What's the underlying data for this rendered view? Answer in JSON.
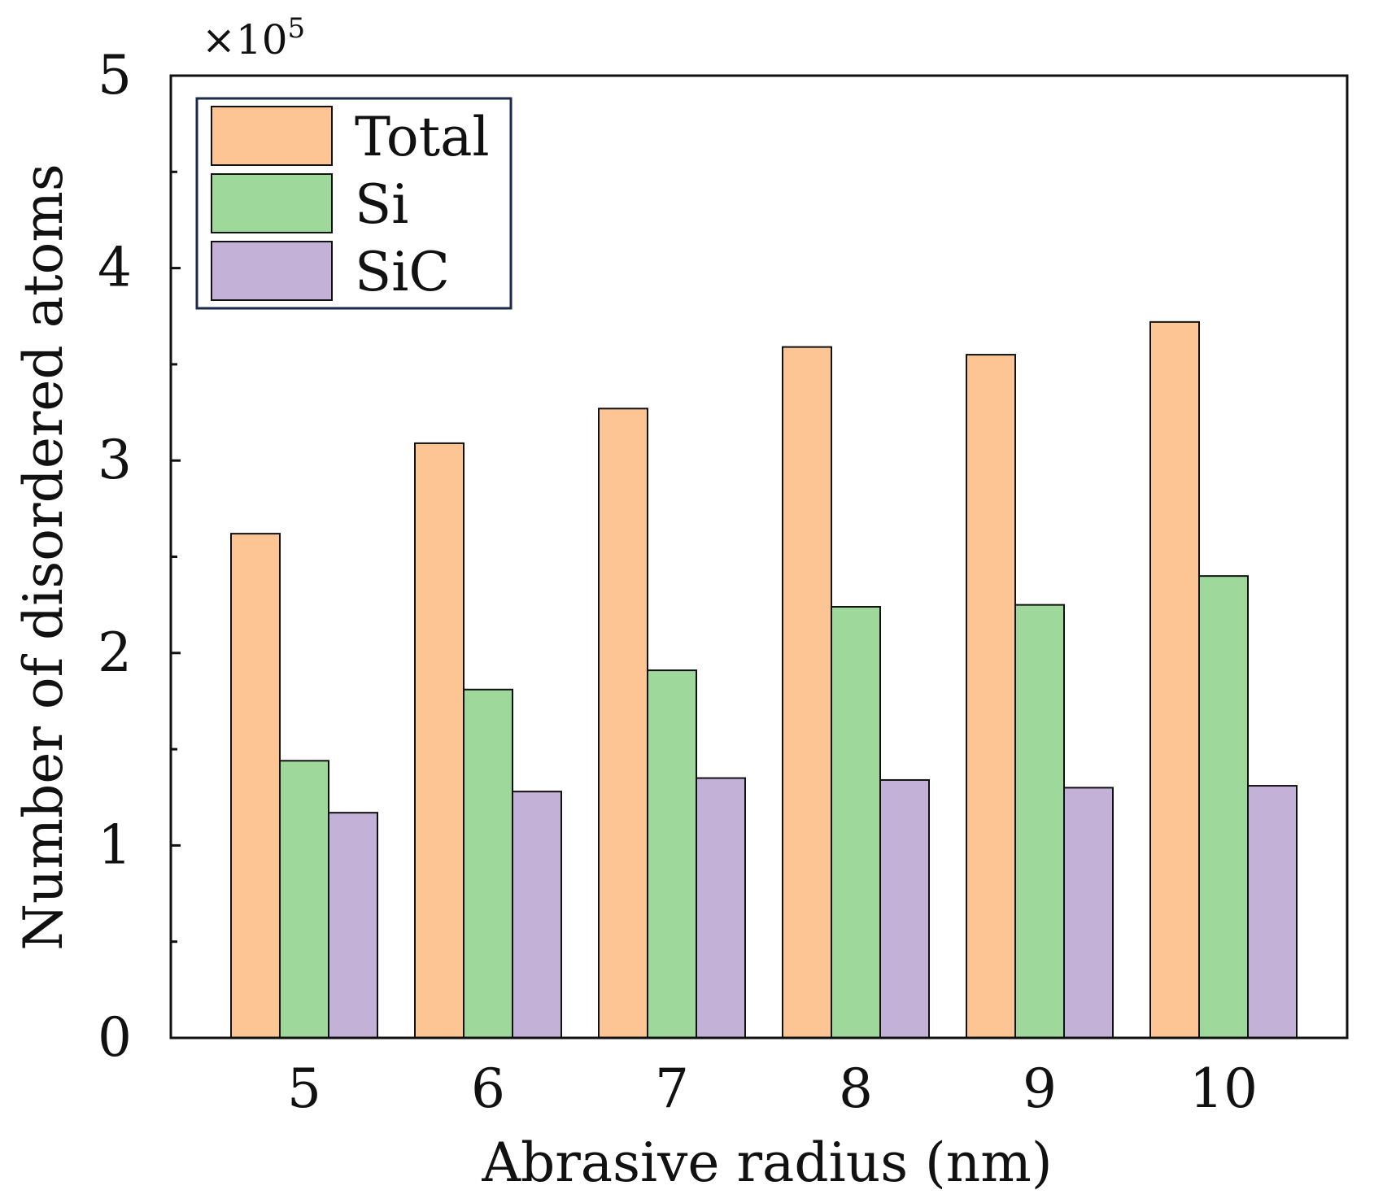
{
  "chart_data": {
    "type": "bar",
    "title": "",
    "xlabel": "Abrasive radius (nm)",
    "ylabel": "Number of disordered atoms",
    "y_multiplier": "×10",
    "y_multiplier_exponent": "5",
    "categories": [
      "5",
      "6",
      "7",
      "8",
      "9",
      "10"
    ],
    "yticks": [
      "0",
      "1",
      "2",
      "3",
      "4",
      "5"
    ],
    "ylim": [
      0,
      5
    ],
    "legend_position": "top-left",
    "series": [
      {
        "name": "Total",
        "color": "#FDC593",
        "values": [
          2.62,
          3.09,
          3.27,
          3.59,
          3.55,
          3.72
        ]
      },
      {
        "name": "Si",
        "color": "#9ED89B",
        "values": [
          1.44,
          1.81,
          1.91,
          2.24,
          2.25,
          2.4
        ]
      },
      {
        "name": "SiC",
        "color": "#C3B1D8",
        "values": [
          1.17,
          1.28,
          1.35,
          1.34,
          1.3,
          1.31
        ]
      }
    ]
  }
}
